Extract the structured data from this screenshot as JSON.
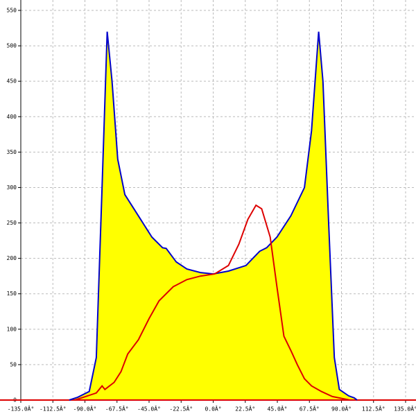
{
  "chart_data": {
    "type": "line",
    "xlim": [
      -135,
      135
    ],
    "ylim": [
      0,
      550
    ],
    "xticks": [
      {
        "value": -135,
        "label": "-135.0Â°"
      },
      {
        "value": -112.5,
        "label": "-112.5Â°"
      },
      {
        "value": -90,
        "label": "-90.0Â°"
      },
      {
        "value": -67.5,
        "label": "-67.5Â°"
      },
      {
        "value": -45,
        "label": "-45.0Â°"
      },
      {
        "value": -22.5,
        "label": "-22.5Â°"
      },
      {
        "value": 0,
        "label": "0.0Â°"
      },
      {
        "value": 22.5,
        "label": "22.5Â°"
      },
      {
        "value": 45,
        "label": "45.0Â°"
      },
      {
        "value": 67.5,
        "label": "67.5Â°"
      },
      {
        "value": 90,
        "label": "90.0Â°"
      },
      {
        "value": 112.5,
        "label": "112.5Â°"
      },
      {
        "value": 135,
        "label": "135.0Â°"
      }
    ],
    "yticks": [
      0,
      50,
      100,
      150,
      200,
      250,
      300,
      350,
      400,
      450,
      500,
      550
    ],
    "grid": true,
    "series": [
      {
        "color": "#0000cc",
        "fill": "#ffff00",
        "x": [
          -101,
          -95,
          -87,
          -82,
          -78,
          -74.4,
          -71,
          -67,
          -62,
          -52.5,
          -43,
          -35.5,
          -33,
          -26,
          -18.5,
          -9,
          0,
          10.7,
          23,
          32.6,
          37.5,
          44.7,
          54.5,
          64,
          69,
          74,
          77,
          81,
          85,
          88.5,
          95,
          99,
          101
        ],
        "values": [
          0,
          4,
          12,
          60,
          300,
          520,
          450,
          340,
          290,
          260,
          230,
          215,
          214,
          195,
          185,
          180,
          178,
          182,
          190,
          210,
          215,
          230,
          260,
          300,
          380,
          520,
          450,
          250,
          60,
          15,
          6,
          3,
          0
        ]
      },
      {
        "color": "#dd0000",
        "x": [
          -97,
          -82,
          -78,
          -76,
          -69.5,
          -64.7,
          -60,
          -52.5,
          -45,
          -38,
          -28,
          -18.5,
          -9,
          1,
          10.7,
          18,
          24.3,
          30,
          34,
          40,
          44.7,
          49.6,
          54.5,
          59,
          64,
          69,
          76,
          83.6,
          91,
          96
        ],
        "values": [
          0,
          10,
          20,
          15,
          25,
          40,
          65,
          85,
          115,
          140,
          160,
          170,
          175,
          178,
          190,
          220,
          255,
          275,
          270,
          230,
          160,
          90,
          70,
          50,
          30,
          20,
          12,
          5,
          2,
          0
        ]
      }
    ]
  }
}
